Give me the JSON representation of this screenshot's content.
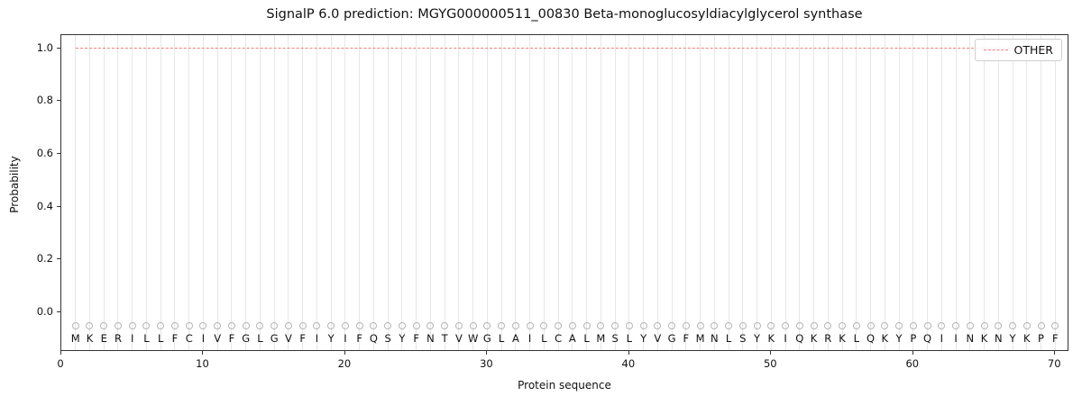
{
  "chart_data": {
    "type": "line",
    "title": "SignalP 6.0 prediction: MGYG000000511_00830 Beta-monoglucosyldiacylglycerol synthase",
    "xlabel": "Protein sequence",
    "ylabel": "Probability",
    "xlim": [
      0,
      71
    ],
    "ylim": [
      -0.15,
      1.05
    ],
    "x_ticks": [
      0,
      10,
      20,
      30,
      40,
      50,
      60,
      70
    ],
    "y_ticks": [
      0.0,
      0.2,
      0.4,
      0.6,
      0.8,
      1.0
    ],
    "grid": true,
    "grid_color": "#e7e7e7",
    "legend_position": "upper right",
    "sequence": "MKERILLFCIVFGLGVFIYIFQSYFNTVWGLAILCALMSLYVGFMNLSYKIQKRKLQKYPQIINKNYKPF",
    "position_markers": {
      "y": -0.05,
      "shape": "open-circle",
      "color": "#b5b5b5"
    },
    "series": [
      {
        "name": "OTHER",
        "style": "dashed",
        "color": "#f08080",
        "x": [
          1,
          2,
          3,
          4,
          5,
          6,
          7,
          8,
          9,
          10,
          11,
          12,
          13,
          14,
          15,
          16,
          17,
          18,
          19,
          20,
          21,
          22,
          23,
          24,
          25,
          26,
          27,
          28,
          29,
          30,
          31,
          32,
          33,
          34,
          35,
          36,
          37,
          38,
          39,
          40,
          41,
          42,
          43,
          44,
          45,
          46,
          47,
          48,
          49,
          50,
          51,
          52,
          53,
          54,
          55,
          56,
          57,
          58,
          59,
          60,
          61,
          62,
          63,
          64,
          65,
          66,
          67,
          68,
          69,
          70
        ],
        "values": [
          1.0,
          1.0,
          1.0,
          1.0,
          1.0,
          1.0,
          1.0,
          1.0,
          1.0,
          1.0,
          1.0,
          1.0,
          1.0,
          1.0,
          1.0,
          1.0,
          1.0,
          1.0,
          1.0,
          1.0,
          1.0,
          1.0,
          1.0,
          1.0,
          1.0,
          1.0,
          1.0,
          1.0,
          1.0,
          1.0,
          1.0,
          1.0,
          1.0,
          1.0,
          1.0,
          1.0,
          1.0,
          1.0,
          1.0,
          1.0,
          1.0,
          1.0,
          1.0,
          1.0,
          1.0,
          1.0,
          1.0,
          1.0,
          1.0,
          1.0,
          1.0,
          1.0,
          1.0,
          1.0,
          1.0,
          1.0,
          1.0,
          1.0,
          1.0,
          1.0,
          1.0,
          1.0,
          1.0,
          1.0,
          1.0,
          1.0,
          1.0,
          1.0,
          1.0,
          1.0
        ]
      }
    ]
  }
}
